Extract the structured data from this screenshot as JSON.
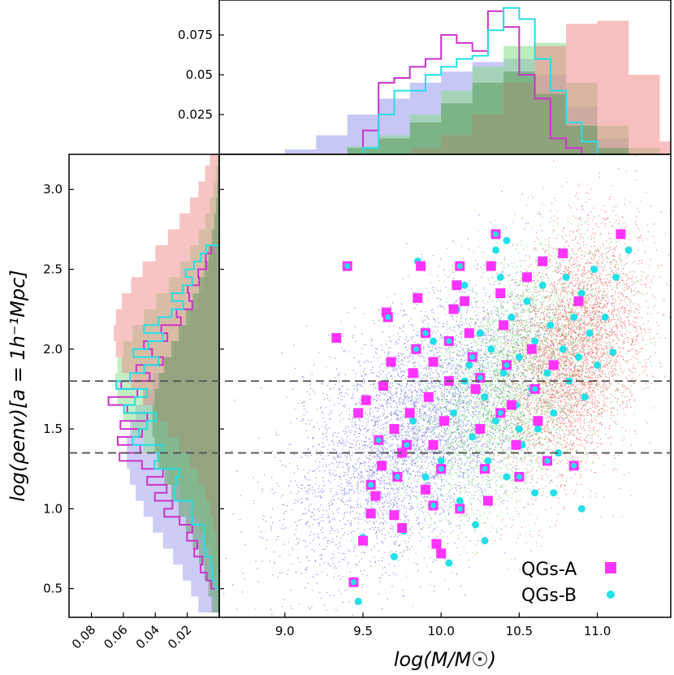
{
  "chart_data": {
    "type": "scatter",
    "xlabel": "log(M/M☉)",
    "ylabel": "log(ρenv)[a = 1h⁻¹Mpc]",
    "xlim": [
      8.58,
      11.47
    ],
    "ylim": [
      0.32,
      3.22
    ],
    "x_ticks": [
      9.0,
      9.5,
      10.0,
      10.5,
      11.0
    ],
    "x_tick_labels": [
      "9.0",
      "9.5",
      "10.0",
      "10.5",
      "11.0"
    ],
    "y_ticks": [
      0.5,
      1.0,
      1.5,
      2.0,
      2.5,
      3.0
    ],
    "y_tick_labels": [
      "0.5",
      "1.0",
      "1.5",
      "2.0",
      "2.5",
      "3.0"
    ],
    "top_hist_ylim": [
      0,
      0.097
    ],
    "top_hist_ticks": [
      0.025,
      0.05,
      0.075
    ],
    "top_hist_tick_labels": [
      "0.025",
      "0.05",
      "0.075"
    ],
    "left_hist_xlim": [
      0.0,
      0.094
    ],
    "left_hist_ticks": [
      0.08,
      0.06,
      0.04,
      0.02
    ],
    "left_hist_tick_labels": [
      "0.08",
      "0.06",
      "0.04",
      "0.02"
    ],
    "hlines": [
      1.8,
      1.35
    ],
    "legend": {
      "placement": "lower-right",
      "entries": [
        {
          "label": "QGs-A",
          "color": "#ff33ff",
          "marker": "square"
        },
        {
          "label": "QGs-B",
          "color": "#22e0e8",
          "marker": "circle"
        }
      ]
    },
    "background_populations": [
      {
        "color": "#2d2dd8",
        "x_mean": 9.85,
        "x_sd": 0.42,
        "y_at_mean": 1.5
      },
      {
        "color": "#2ecc2e",
        "x_mean": 10.45,
        "x_sd": 0.32,
        "y_at_mean": 1.8
      },
      {
        "color": "#ee2020",
        "x_mean": 10.85,
        "x_sd": 0.22,
        "y_at_mean": 2.0
      }
    ],
    "top_hists": [
      {
        "fill": "#9999ee",
        "bins_x": [
          9.0,
          9.2,
          9.4,
          9.6,
          9.8,
          10.0,
          10.2,
          10.4,
          10.6,
          10.8,
          11.0
        ],
        "values": [
          0.003,
          0.012,
          0.025,
          0.035,
          0.045,
          0.052,
          0.058,
          0.06,
          0.05,
          0.03,
          0.01
        ]
      },
      {
        "fill": "#88dd88",
        "bins_x": [
          9.4,
          9.6,
          9.8,
          10.0,
          10.2,
          10.4,
          10.6,
          10.8,
          11.0,
          11.2
        ],
        "values": [
          0.005,
          0.012,
          0.025,
          0.04,
          0.055,
          0.068,
          0.07,
          0.045,
          0.018,
          0.004
        ]
      },
      {
        "fill": "#f08a8a",
        "bins_x": [
          9.8,
          10.0,
          10.2,
          10.4,
          10.6,
          10.8,
          11.0,
          11.2,
          11.4
        ],
        "values": [
          0.004,
          0.012,
          0.025,
          0.045,
          0.068,
          0.082,
          0.084,
          0.05,
          0.008
        ]
      },
      {
        "fill": "#5c9a5c",
        "bins_x": [
          9.4,
          9.6,
          9.8,
          10.0,
          10.2,
          10.4,
          10.6,
          10.8,
          11.0
        ],
        "values": [
          0.004,
          0.01,
          0.02,
          0.032,
          0.045,
          0.052,
          0.038,
          0.018,
          0.004
        ]
      }
    ],
    "qgs_a_hist_x": {
      "bins": [
        9.5,
        9.6,
        9.7,
        9.8,
        9.9,
        10.0,
        10.1,
        10.2,
        10.3,
        10.4,
        10.5,
        10.6,
        10.7,
        10.8
      ],
      "values": [
        0.015,
        0.045,
        0.048,
        0.055,
        0.06,
        0.075,
        0.07,
        0.065,
        0.09,
        0.08,
        0.05,
        0.035,
        0.01,
        0.004
      ]
    },
    "qgs_b_hist_x": {
      "bins": [
        9.5,
        9.6,
        9.7,
        9.8,
        9.9,
        10.0,
        10.1,
        10.2,
        10.3,
        10.4,
        10.5,
        10.6,
        10.7,
        10.8,
        10.9
      ],
      "values": [
        0.004,
        0.025,
        0.04,
        0.04,
        0.05,
        0.055,
        0.06,
        0.062,
        0.078,
        0.092,
        0.085,
        0.06,
        0.04,
        0.02,
        0.008
      ]
    },
    "qgs_a_points": [
      [
        9.4,
        2.52
      ],
      [
        9.33,
        2.07
      ],
      [
        9.5,
        0.8
      ],
      [
        9.44,
        0.54
      ],
      [
        9.52,
        1.68
      ],
      [
        9.47,
        1.6
      ],
      [
        9.55,
        1.15
      ],
      [
        9.55,
        0.97
      ],
      [
        9.58,
        1.08
      ],
      [
        9.6,
        1.43
      ],
      [
        9.63,
        1.77
      ],
      [
        9.65,
        2.23
      ],
      [
        9.66,
        2.2
      ],
      [
        9.68,
        1.92
      ],
      [
        9.7,
        1.5
      ],
      [
        9.72,
        1.2
      ],
      [
        9.7,
        0.96
      ],
      [
        9.75,
        0.88
      ],
      [
        9.78,
        1.4
      ],
      [
        9.8,
        1.6
      ],
      [
        9.82,
        1.85
      ],
      [
        9.84,
        2.0
      ],
      [
        9.85,
        2.32
      ],
      [
        9.87,
        2.52
      ],
      [
        9.9,
        2.1
      ],
      [
        9.92,
        1.7
      ],
      [
        9.95,
        1.4
      ],
      [
        9.95,
        1.02
      ],
      [
        9.97,
        0.78
      ],
      [
        10.0,
        0.72
      ],
      [
        10.0,
        1.25
      ],
      [
        10.02,
        1.55
      ],
      [
        10.05,
        1.8
      ],
      [
        10.05,
        2.05
      ],
      [
        10.08,
        2.25
      ],
      [
        10.1,
        2.4
      ],
      [
        10.12,
        2.52
      ],
      [
        10.15,
        2.3
      ],
      [
        10.18,
        2.1
      ],
      [
        10.2,
        1.95
      ],
      [
        10.22,
        1.75
      ],
      [
        10.25,
        1.5
      ],
      [
        10.28,
        1.25
      ],
      [
        10.3,
        1.05
      ],
      [
        10.32,
        2.52
      ],
      [
        10.35,
        2.72
      ],
      [
        10.38,
        2.35
      ],
      [
        10.4,
        2.15
      ],
      [
        10.42,
        1.9
      ],
      [
        10.45,
        1.65
      ],
      [
        10.48,
        1.4
      ],
      [
        10.5,
        1.2
      ],
      [
        10.55,
        2.45
      ],
      [
        10.58,
        2.0
      ],
      [
        10.6,
        1.75
      ],
      [
        10.62,
        1.55
      ],
      [
        10.65,
        2.55
      ],
      [
        10.68,
        1.3
      ],
      [
        10.72,
        1.9
      ],
      [
        10.78,
        2.6
      ],
      [
        10.85,
        1.27
      ],
      [
        10.88,
        2.3
      ],
      [
        11.15,
        2.72
      ],
      [
        10.25,
        1.82
      ],
      [
        9.62,
        1.27
      ],
      [
        9.9,
        1.12
      ],
      [
        10.12,
        1.0
      ],
      [
        9.75,
        1.35
      ],
      [
        9.95,
        1.92
      ],
      [
        10.38,
        1.6
      ]
    ],
    "qgs_b_points": [
      [
        9.5,
        0.82
      ],
      [
        9.47,
        0.42
      ],
      [
        9.7,
        0.7
      ],
      [
        9.76,
        0.86
      ],
      [
        9.82,
        1.55
      ],
      [
        9.85,
        2.55
      ],
      [
        9.9,
        1.2
      ],
      [
        9.95,
        2.05
      ],
      [
        10.0,
        1.3
      ],
      [
        10.05,
        0.66
      ],
      [
        10.08,
        1.6
      ],
      [
        10.1,
        2.25
      ],
      [
        10.12,
        1.05
      ],
      [
        10.15,
        2.4
      ],
      [
        10.18,
        1.9
      ],
      [
        10.2,
        1.45
      ],
      [
        10.22,
        0.9
      ],
      [
        10.25,
        2.1
      ],
      [
        10.28,
        1.7
      ],
      [
        10.3,
        1.3
      ],
      [
        10.32,
        2.0
      ],
      [
        10.35,
        1.55
      ],
      [
        10.38,
        2.45
      ],
      [
        10.4,
        1.85
      ],
      [
        10.42,
        1.2
      ],
      [
        10.45,
        2.2
      ],
      [
        10.48,
        1.65
      ],
      [
        10.5,
        1.95
      ],
      [
        10.52,
        1.4
      ],
      [
        10.55,
        2.3
      ],
      [
        10.58,
        1.75
      ],
      [
        10.6,
        2.05
      ],
      [
        10.62,
        1.5
      ],
      [
        10.65,
        2.4
      ],
      [
        10.68,
        1.85
      ],
      [
        10.7,
        2.15
      ],
      [
        10.72,
        1.6
      ],
      [
        10.75,
        1.35
      ],
      [
        10.78,
        2.0
      ],
      [
        10.8,
        2.45
      ],
      [
        10.82,
        1.8
      ],
      [
        10.85,
        2.2
      ],
      [
        10.88,
        1.95
      ],
      [
        10.9,
        2.35
      ],
      [
        10.92,
        1.7
      ],
      [
        10.95,
        2.1
      ],
      [
        10.98,
        2.5
      ],
      [
        11.0,
        1.9
      ],
      [
        11.05,
        2.2
      ],
      [
        11.1,
        1.98
      ],
      [
        11.12,
        2.45
      ],
      [
        11.2,
        2.62
      ],
      [
        10.35,
        2.62
      ],
      [
        10.42,
        2.68
      ],
      [
        10.6,
        1.1
      ],
      [
        10.72,
        1.1
      ],
      [
        10.9,
        1.0
      ],
      [
        10.28,
        0.8
      ],
      [
        10.15,
        1.8
      ],
      [
        10.5,
        1.5
      ]
    ]
  }
}
